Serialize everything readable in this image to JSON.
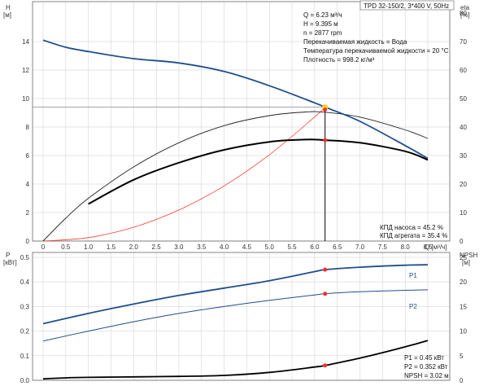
{
  "pump_title": "TPD 32-150/2, 3*400 V, 50Hz",
  "top_chart": {
    "ylabel_left": "H",
    "ylabel_left_unit": "[м]",
    "ylabel_right": "eta",
    "ylabel_right_unit": "[%]",
    "xlabel": "Q [м³/ч]",
    "yticks_left": [
      "0",
      "2",
      "4",
      "6",
      "8",
      "10",
      "12",
      "14"
    ],
    "yticks_right": [
      "0",
      "10",
      "20",
      "30",
      "40",
      "50",
      "60",
      "70",
      "80"
    ],
    "info_lines": [
      "Q = 6.23 м³/ч",
      "H = 9.395 м",
      "n = 2877 rpm",
      "Перекачиваемая жидкость = Вода",
      "Температура перекачиваемой жидкости = 20 °C",
      "Плотность = 998.2 кг/м³"
    ],
    "efficiency_lines": [
      "КПД насоса = 45.2 %",
      "КПД агрегата = 35.4 %"
    ]
  },
  "x_ticks": [
    "0",
    "0.5",
    "1.0",
    "1.5",
    "2.0",
    "2.5",
    "3.0",
    "3.5",
    "4.0",
    "4.5",
    "5.0",
    "5.5",
    "6.0",
    "6.5",
    "7.0",
    "7.5",
    "8.0",
    "8.5"
  ],
  "bottom_chart": {
    "ylabel_left": "P",
    "ylabel_left_unit": "[кВт]",
    "ylabel_right": "NPSH",
    "ylabel_right_unit": "[м]",
    "yticks_left": [
      "0.0",
      "0.1",
      "0.2",
      "0.3",
      "0.4",
      "0.5"
    ],
    "yticks_right": [
      "0",
      "5",
      "10",
      "15",
      "20",
      "25"
    ],
    "series_labels": [
      "P1",
      "P2"
    ],
    "info_lines": [
      "P1 = 0.45 кВт",
      "P2 = 0.352 кВт",
      "NPSH = 3.02 м"
    ]
  },
  "colors": {
    "head": "#1f4e8c",
    "eta": "#000000",
    "system": "#ff3b30",
    "op_point": "#ff2a2a",
    "highlight": "#ffd21f",
    "grid": "#cccccc"
  },
  "chart_data": [
    {
      "type": "line",
      "title": "TPD 32-150/2, 3*400 V, 50Hz",
      "xlabel": "Q [м³/ч]",
      "ylabel": "H [м]",
      "xlim": [
        0,
        8.5
      ],
      "ylim": [
        0,
        16
      ],
      "secondary_ylabel": "eta [%]",
      "secondary_ylim": [
        0,
        80
      ],
      "grid": true,
      "series": [
        {
          "name": "H",
          "axis": "left",
          "x": [
            0,
            0.5,
            1.0,
            2.0,
            3.0,
            4.0,
            5.0,
            6.0,
            6.23,
            7.0,
            8.0,
            8.5
          ],
          "y": [
            14.1,
            13.6,
            13.3,
            12.8,
            12.5,
            11.9,
            10.9,
            9.7,
            9.395,
            8.4,
            6.7,
            5.8
          ]
        },
        {
          "name": "eta (pump)",
          "axis": "right",
          "x": [
            0,
            0.5,
            1.0,
            2.0,
            3.0,
            4.0,
            5.0,
            5.8,
            6.23,
            7.0,
            8.0,
            8.5
          ],
          "y": [
            0,
            8,
            15,
            26,
            34.5,
            40.5,
            44,
            45.3,
            45.2,
            43.5,
            39,
            36
          ]
        },
        {
          "name": "eta (unit)",
          "axis": "right",
          "x": [
            1.0,
            2.0,
            3.0,
            4.0,
            5.0,
            5.8,
            6.23,
            7.0,
            8.0,
            8.5
          ],
          "y": [
            13,
            21.5,
            27.5,
            32,
            34.8,
            35.6,
            35.4,
            34.5,
            31.5,
            28.5
          ]
        },
        {
          "name": "system curve",
          "axis": "left",
          "x": [
            0,
            1,
            2,
            3,
            4,
            5,
            6,
            6.23
          ],
          "y": [
            0,
            0.242,
            0.968,
            2.18,
            3.87,
            6.05,
            8.71,
            9.395
          ]
        }
      ],
      "operating_point": {
        "Q": 6.23,
        "H": 9.395,
        "eta_pump": 45.2,
        "eta_unit": 35.4
      }
    },
    {
      "type": "line",
      "xlabel": "Q [м³/ч]",
      "ylabel": "P [кВт]",
      "xlim": [
        0,
        8.5
      ],
      "ylim": [
        0,
        0.5
      ],
      "secondary_ylabel": "NPSH [м]",
      "secondary_ylim": [
        0,
        25
      ],
      "grid": true,
      "series": [
        {
          "name": "P1",
          "axis": "left",
          "x": [
            0,
            1,
            2,
            3,
            4,
            5,
            6,
            6.23,
            7,
            8,
            8.5
          ],
          "y": [
            0.23,
            0.272,
            0.31,
            0.345,
            0.375,
            0.405,
            0.442,
            0.45,
            0.46,
            0.468,
            0.47
          ]
        },
        {
          "name": "P2",
          "axis": "left",
          "x": [
            0,
            1,
            2,
            3,
            4,
            5,
            6,
            6.23,
            7,
            8,
            8.5
          ],
          "y": [
            0.16,
            0.2,
            0.238,
            0.272,
            0.3,
            0.325,
            0.347,
            0.352,
            0.36,
            0.366,
            0.368
          ]
        },
        {
          "name": "NPSH",
          "axis": "right",
          "x": [
            0,
            0.5,
            1,
            2,
            3,
            4,
            5,
            6,
            6.23,
            7,
            8,
            8.5
          ],
          "y": [
            0.3,
            0.5,
            0.6,
            0.7,
            0.8,
            1.0,
            1.6,
            2.7,
            3.02,
            4.5,
            6.8,
            8.1
          ]
        }
      ],
      "operating_point": {
        "Q": 6.23,
        "P1": 0.45,
        "P2": 0.352,
        "NPSH": 3.02
      }
    }
  ]
}
